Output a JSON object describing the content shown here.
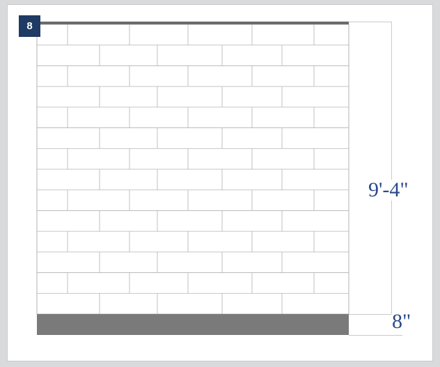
{
  "panel": {
    "number": "8"
  },
  "dimensions": {
    "wall_height": "9'-4\"",
    "base_height": "8\""
  },
  "wall": {
    "courses": 14,
    "tile_color": "#ffffff",
    "grout_color": "#b3b3b3",
    "cap_color": "#6b6b6b",
    "base_color": "#7a7a7a"
  }
}
